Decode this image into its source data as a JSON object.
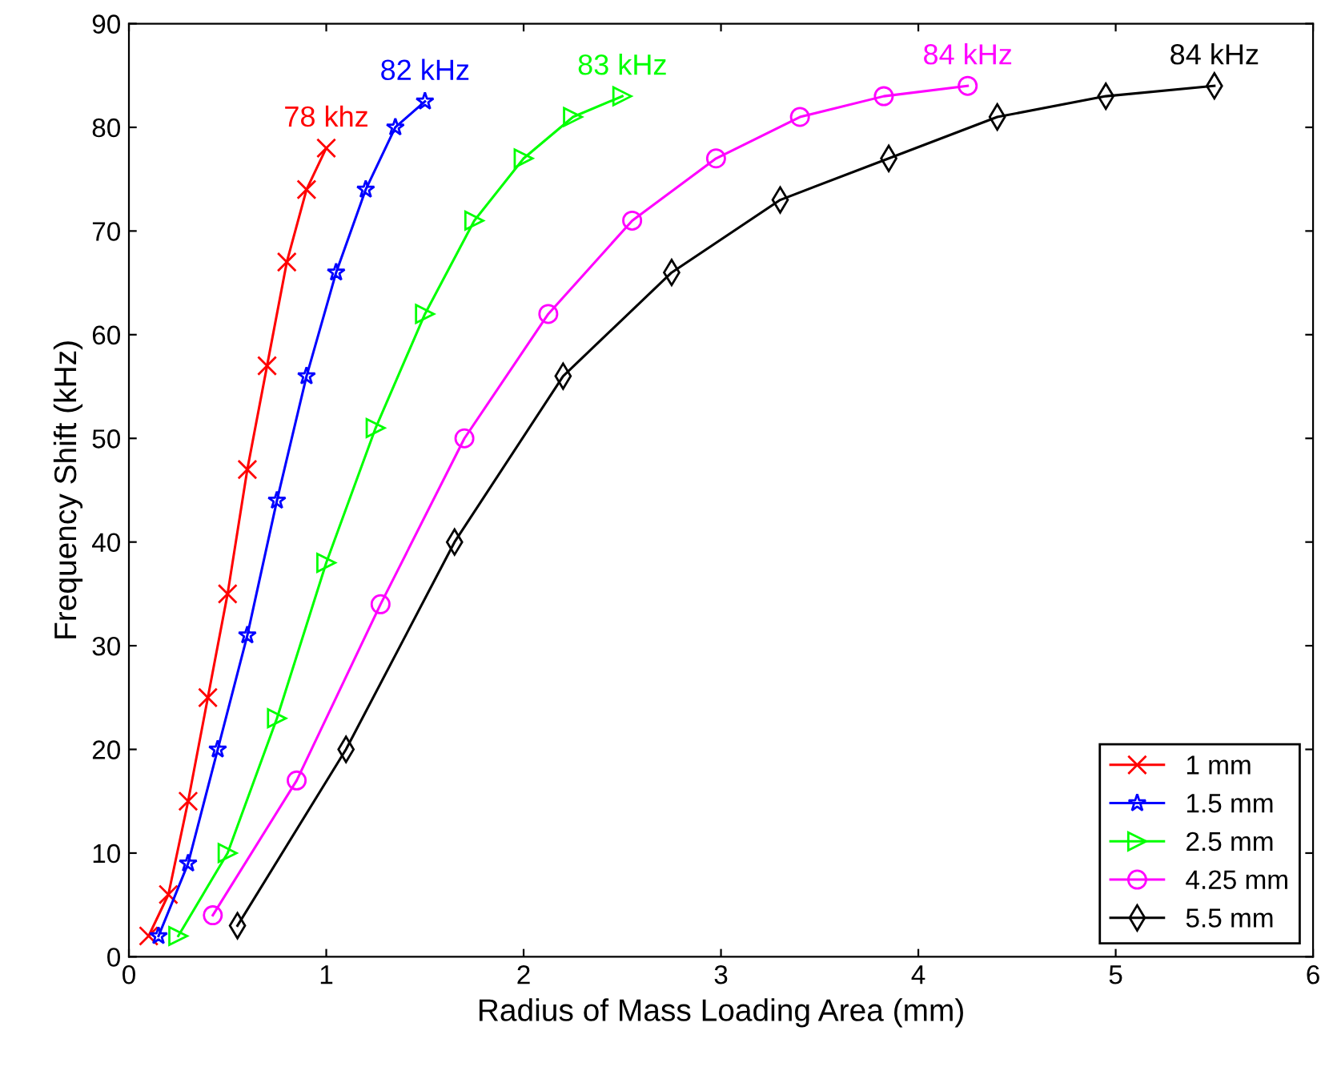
{
  "chart_data": {
    "type": "line",
    "xlabel": "Radius of Mass Loading Area (mm)",
    "ylabel": "Frequency Shift (kHz)",
    "xlim": [
      0,
      6
    ],
    "ylim": [
      0,
      90
    ],
    "xticks": [
      0,
      1,
      2,
      3,
      4,
      5,
      6
    ],
    "yticks": [
      0,
      10,
      20,
      30,
      40,
      50,
      60,
      70,
      80,
      90
    ],
    "grid": false,
    "legend": "bottom right",
    "series": [
      {
        "name": "1 mm",
        "color": "#ff0000",
        "marker": "cross",
        "x": [
          0.1,
          0.2,
          0.3,
          0.4,
          0.5,
          0.6,
          0.7,
          0.8,
          0.9,
          1.0
        ],
        "values": [
          2,
          6,
          15,
          25,
          35,
          47,
          57,
          67,
          74,
          78
        ]
      },
      {
        "name": "1.5 mm",
        "color": "#0000ff",
        "marker": "star",
        "x": [
          0.15,
          0.3,
          0.45,
          0.6,
          0.75,
          0.9,
          1.05,
          1.2,
          1.35,
          1.5
        ],
        "values": [
          2,
          9,
          20,
          31,
          44,
          56,
          66,
          74,
          80,
          82.5
        ]
      },
      {
        "name": "2.5 mm",
        "color": "#00ff00",
        "marker": "triangle",
        "x": [
          0.25,
          0.5,
          0.75,
          1.0,
          1.25,
          1.5,
          1.75,
          2.0,
          2.25,
          2.5
        ],
        "values": [
          2,
          10,
          23,
          38,
          51,
          62,
          71,
          77,
          81,
          83
        ]
      },
      {
        "name": "4.25 mm",
        "color": "#ff00ff",
        "marker": "circle",
        "x": [
          0.425,
          0.85,
          1.275,
          1.7,
          2.125,
          2.55,
          2.975,
          3.4,
          3.825,
          4.25
        ],
        "values": [
          4,
          17,
          34,
          50,
          62,
          71,
          77,
          81,
          83,
          84
        ]
      },
      {
        "name": "5.5 mm",
        "color": "#000000",
        "marker": "diamond",
        "x": [
          0.55,
          1.1,
          1.65,
          2.2,
          2.75,
          3.3,
          3.85,
          4.4,
          4.95,
          5.5
        ],
        "values": [
          3,
          20,
          40,
          56,
          66,
          73,
          77,
          81,
          83,
          84
        ]
      }
    ],
    "annotations": [
      {
        "text": "78 khz",
        "x": 1.0,
        "y": 78
      },
      {
        "text": "82 kHz",
        "x": 1.5,
        "y": 82.5
      },
      {
        "text": "83 kHz",
        "x": 2.5,
        "y": 83
      },
      {
        "text": "84 kHz",
        "x": 4.25,
        "y": 84
      },
      {
        "text": "84 kHz",
        "x": 5.5,
        "y": 84
      }
    ]
  }
}
